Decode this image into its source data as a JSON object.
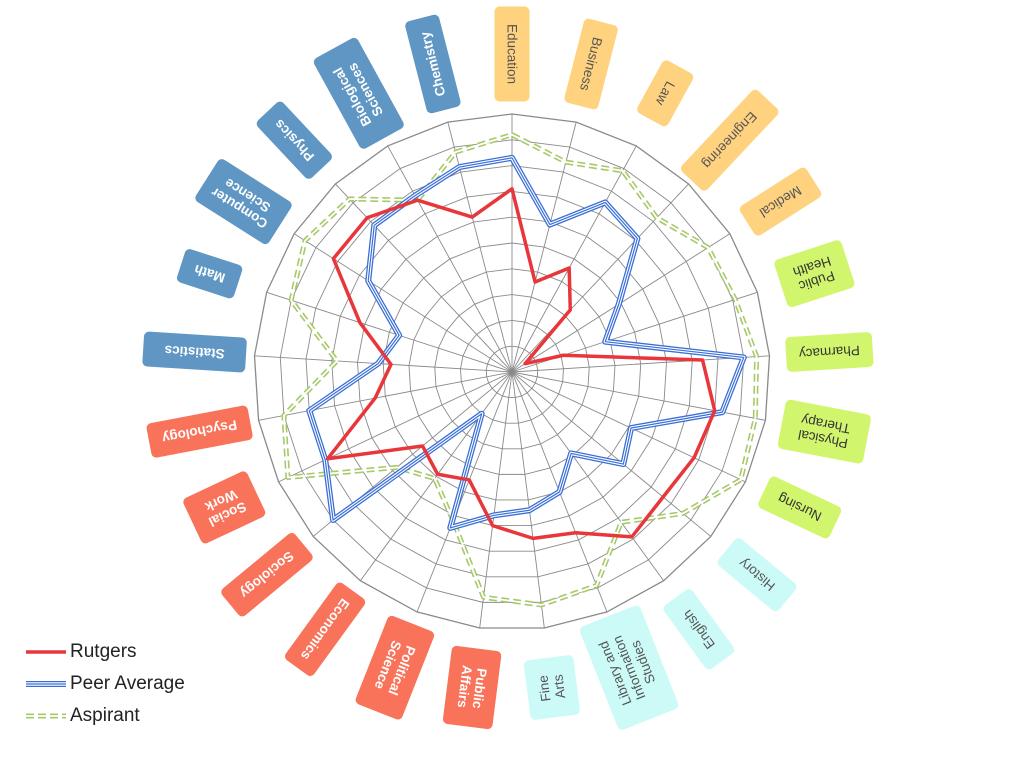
{
  "chart_data": {
    "type": "radar",
    "title": "",
    "rlim": [
      0,
      10
    ],
    "grid": true,
    "legend_position": "bottom-left",
    "categories": [
      "Education",
      "Business",
      "Law",
      "Engineering",
      "Medical",
      "Public Health",
      "Pharmacy",
      "Physical Therapy",
      "Nursing",
      "History",
      "English",
      "Library and Information Studies",
      "Fine Arts",
      "Public Affairs",
      "Political Science",
      "Economics",
      "Sociology",
      "Social Work",
      "Psychology",
      "Statistics",
      "Math",
      "Computer Science",
      "Physics",
      "Biological Sciences",
      "Chemistry"
    ],
    "category_colors": [
      "#ffd27f",
      "#ffd27f",
      "#ffd27f",
      "#ffd27f",
      "#ffd27f",
      "#d2f56e",
      "#d2f56e",
      "#d2f56e",
      "#d2f56e",
      "#ccfbf7",
      "#ccfbf7",
      "#ccfbf7",
      "#ccfbf7",
      "#f8735a",
      "#f8735a",
      "#f8735a",
      "#f8735a",
      "#f8735a",
      "#f8735a",
      "#5f96c3",
      "#5f96c3",
      "#5f96c3",
      "#5f96c3",
      "#5f96c3",
      "#5f96c3"
    ],
    "category_text_colors": [
      "#555555",
      "#555555",
      "#555555",
      "#555555",
      "#555555",
      "#333333",
      "#333333",
      "#333333",
      "#333333",
      "#555555",
      "#555555",
      "#555555",
      "#555555",
      "#ffffff",
      "#ffffff",
      "#ffffff",
      "#ffffff",
      "#ffffff",
      "#ffffff",
      "#ffffff",
      "#ffffff",
      "#ffffff",
      "#ffffff",
      "#ffffff",
      "#ffffff"
    ],
    "series": [
      {
        "name": "Rutgers",
        "color": "#e8363a",
        "style": "solid",
        "values": [
          7.1,
          3.6,
          4.6,
          3.3,
          0.6,
          2.1,
          7.4,
          8.0,
          7.8,
          7.6,
          7.9,
          6.7,
          6.5,
          6.0,
          4.5,
          4.9,
          4.5,
          7.9,
          5.4,
          4.7,
          6.2,
          8.2,
          8.2,
          7.6,
          6.2
        ]
      },
      {
        "name": "Peer Average",
        "color": "#3a6fd8",
        "style": "triple",
        "values": [
          8.3,
          5.9,
          7.5,
          7.1,
          4.9,
          3.8,
          9.0,
          8.3,
          5.1,
          5.6,
          3.9,
          5.0,
          5.4,
          5.6,
          6.5,
          2.0,
          9.0,
          8.0,
          8.0,
          5.2,
          4.6,
          6.6,
          7.8,
          7.8,
          8.2
        ]
      },
      {
        "name": "Aspirant",
        "color": "#a6c96a",
        "style": "dashed-double",
        "values": [
          9.2,
          8.4,
          8.9,
          8.2,
          9.0,
          9.1,
          9.5,
          9.6,
          9.8,
          8.6,
          7.2,
          8.9,
          9.1,
          8.8,
          6.2,
          5.1,
          5.8,
          9.6,
          9.0,
          6.8,
          9.0,
          9.5,
          9.2,
          7.6,
          8.8
        ]
      }
    ]
  }
}
